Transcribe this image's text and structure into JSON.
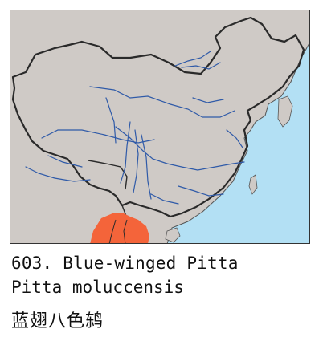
{
  "species": {
    "number_title": "603. Blue-winged Pitta",
    "scientific_name": "Pitta moluccensis",
    "chinese_name": "蓝翅八色鸫"
  },
  "colors": {
    "sea": "#b3e0f4",
    "land": "#cfcac6",
    "border": "#2a2a2a",
    "river": "#2f5aa8",
    "range": "#f4643a",
    "frame": "#333333"
  }
}
